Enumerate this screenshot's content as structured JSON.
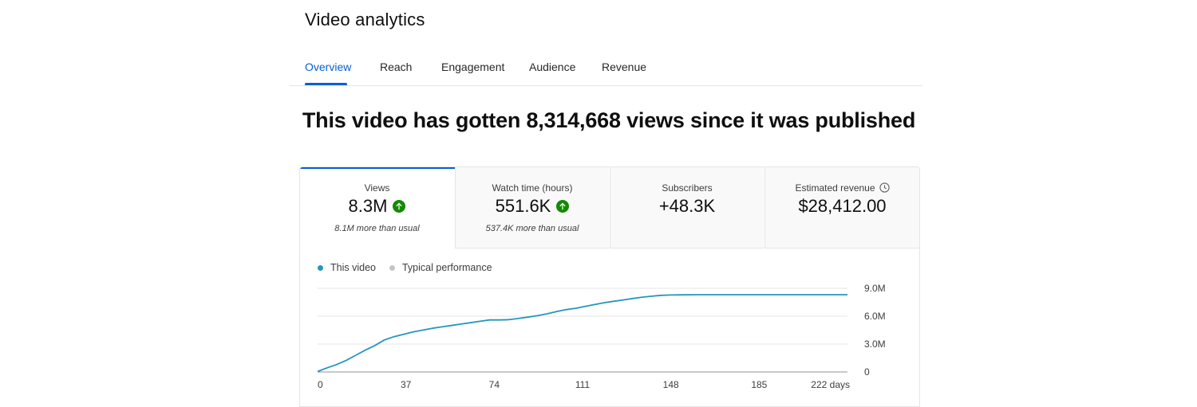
{
  "page": {
    "title": "Video analytics"
  },
  "tabs": [
    {
      "label": "Overview",
      "active": true
    },
    {
      "label": "Reach",
      "active": false
    },
    {
      "label": "Engagement",
      "active": false
    },
    {
      "label": "Audience",
      "active": false
    },
    {
      "label": "Revenue",
      "active": false
    }
  ],
  "headline": "This video has gotten 8,314,668 views since it was published",
  "metrics": [
    {
      "label": "Views",
      "value": "8.3M",
      "note": "8.1M more than usual",
      "trend": "up"
    },
    {
      "label": "Watch time (hours)",
      "value": "551.6K",
      "note": "537.4K more than usual",
      "trend": "up"
    },
    {
      "label": "Subscribers",
      "value": "+48.3K",
      "note": ""
    },
    {
      "label": "Estimated revenue",
      "value": "$28,412.00",
      "note": "",
      "icon": "clock-icon"
    }
  ],
  "legend": [
    {
      "label": "This video",
      "color": "#2596be"
    },
    {
      "label": "Typical performance",
      "color": "#c4c4c4"
    }
  ],
  "colors": {
    "accent": "#065fd4",
    "trend_up": "#138a00",
    "line": "#2596be"
  },
  "chart_data": {
    "type": "line",
    "x_ticks": [
      "0",
      "37",
      "74",
      "111",
      "148",
      "185",
      "222 days"
    ],
    "y_ticks": [
      "0",
      "3.0M",
      "6.0M",
      "9.0M"
    ],
    "xlim": [
      0,
      222
    ],
    "ylim": [
      0,
      9000000
    ],
    "grid": true,
    "series": [
      {
        "name": "This video",
        "color": "#2596be",
        "x": [
          0,
          4,
          8,
          12,
          16,
          20,
          24,
          28,
          32,
          36,
          40,
          44,
          48,
          52,
          56,
          60,
          64,
          68,
          72,
          76,
          80,
          84,
          88,
          92,
          96,
          100,
          104,
          108,
          112,
          116,
          120,
          124,
          128,
          132,
          136,
          140,
          144,
          148,
          152,
          160,
          170,
          180,
          190,
          200,
          210,
          222
        ],
        "y": [
          50000,
          450000,
          800000,
          1250000,
          1800000,
          2350000,
          2850000,
          3450000,
          3800000,
          4050000,
          4300000,
          4500000,
          4700000,
          4850000,
          5000000,
          5150000,
          5300000,
          5450000,
          5600000,
          5600000,
          5620000,
          5750000,
          5900000,
          6050000,
          6250000,
          6500000,
          6700000,
          6850000,
          7050000,
          7250000,
          7450000,
          7600000,
          7750000,
          7900000,
          8050000,
          8150000,
          8250000,
          8280000,
          8300000,
          8310000,
          8312000,
          8313000,
          8314000,
          8314500,
          8314600,
          8314668
        ]
      }
    ]
  }
}
